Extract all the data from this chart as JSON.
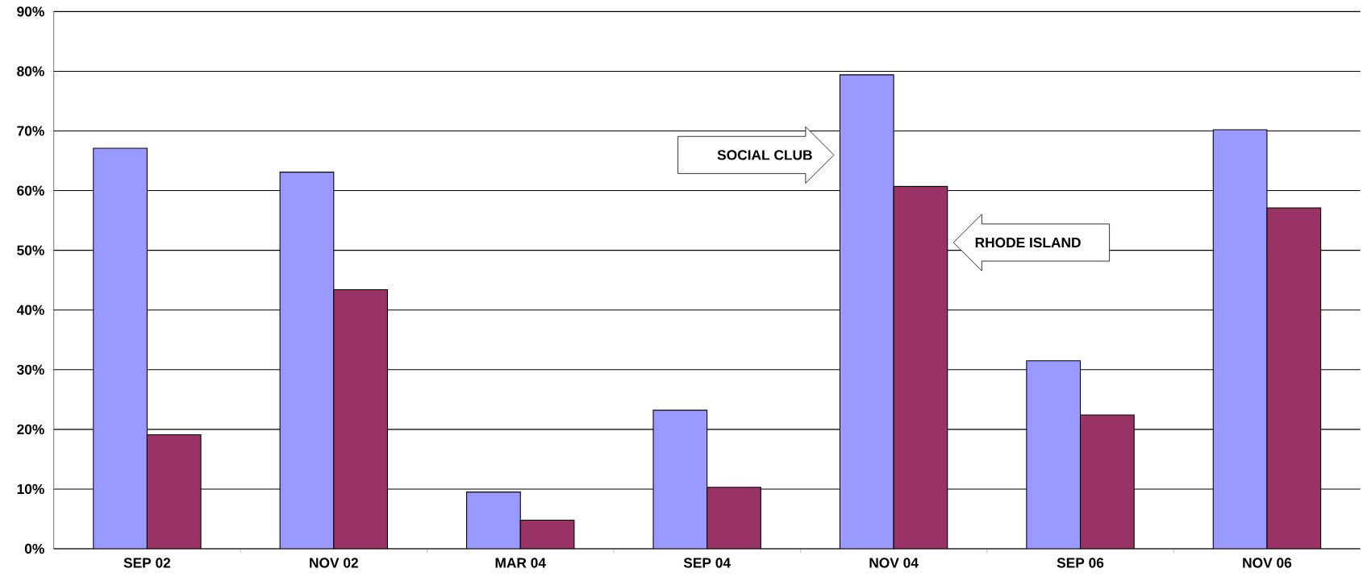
{
  "chart_data": {
    "type": "bar",
    "categories": [
      "SEP 02",
      "NOV 02",
      "MAR 04",
      "SEP 04",
      "NOV 04",
      "SEP 06",
      "NOV 06"
    ],
    "series": [
      {
        "name": "SOCIAL CLUB",
        "color": "#9999ff",
        "values": [
          67.1,
          63.1,
          9.5,
          23.2,
          79.4,
          31.5,
          70.2
        ]
      },
      {
        "name": "RHODE ISLAND",
        "color": "#993366",
        "values": [
          19.1,
          43.4,
          4.8,
          10.3,
          60.7,
          22.4,
          57.1
        ]
      }
    ],
    "ylim": [
      0,
      90
    ],
    "yticks": [
      {
        "value": 0,
        "label": "0%"
      },
      {
        "value": 10,
        "label": "10%"
      },
      {
        "value": 20,
        "label": "20%"
      },
      {
        "value": 30,
        "label": "30%"
      },
      {
        "value": 40,
        "label": "40%"
      },
      {
        "value": 50,
        "label": "50%"
      },
      {
        "value": 60,
        "label": "60%"
      },
      {
        "value": 70,
        "label": "70%"
      },
      {
        "value": 80,
        "label": "80%"
      },
      {
        "value": 90,
        "label": "90%"
      }
    ],
    "grid": "y",
    "legend": false
  }
}
